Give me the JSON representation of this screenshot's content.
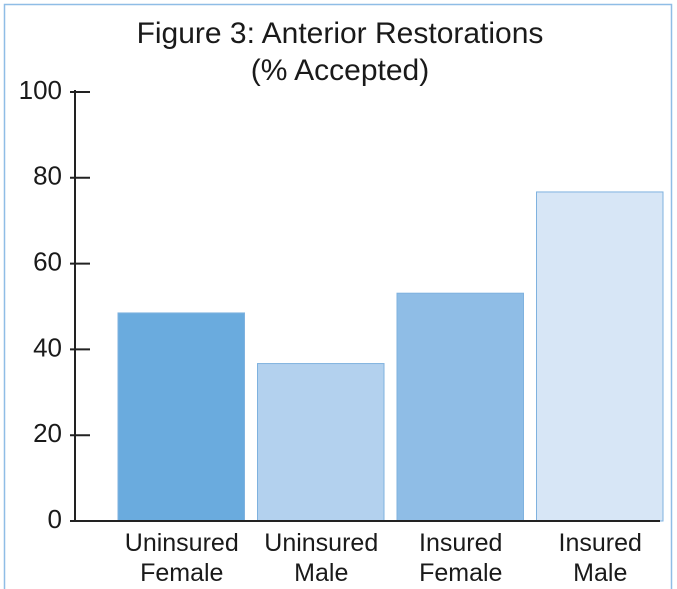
{
  "chart_data": {
    "type": "bar",
    "title": "Figure 3: Anterior Restorations",
    "subtitle": "(% Accepted)",
    "categories": [
      "Uninsured Female",
      "Uninsured Male",
      "Insured Female",
      "Insured Male"
    ],
    "values": [
      48.5,
      36.7,
      53.1,
      76.7
    ],
    "colors": [
      "#6aabde",
      "#b3d1ee",
      "#8fbde6",
      "#d7e6f6"
    ],
    "ylim": [
      0,
      100
    ],
    "yticks": [
      0,
      20,
      40,
      60,
      80,
      100
    ],
    "grid": false
  }
}
